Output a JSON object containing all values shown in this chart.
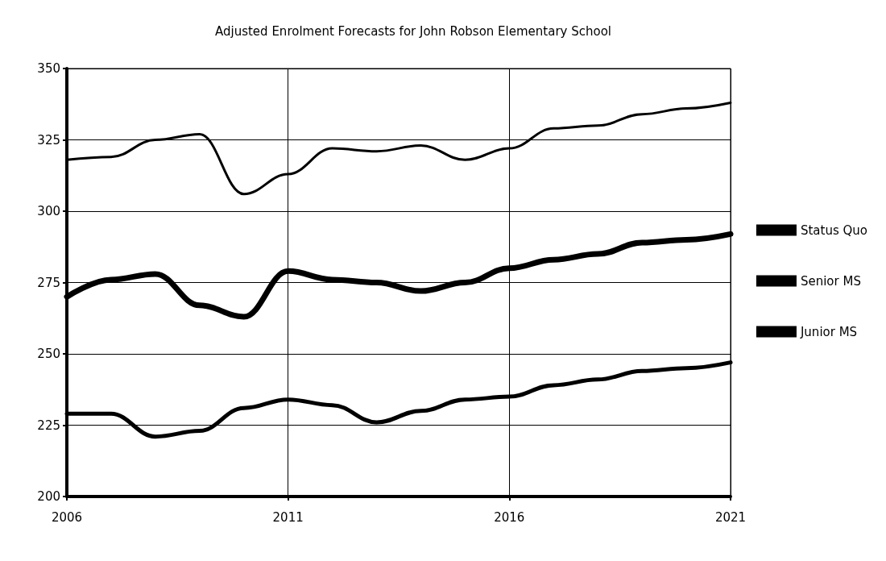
{
  "chart_data": {
    "type": "line",
    "title": "Adjusted Enrolment Forecasts for John Robson Elementary School",
    "x": [
      2006,
      2007,
      2008,
      2009,
      2010,
      2011,
      2012,
      2013,
      2014,
      2015,
      2016,
      2017,
      2018,
      2019,
      2020,
      2021
    ],
    "series": [
      {
        "name": "Status Quo",
        "color": "#000000",
        "values": [
          318,
          319,
          325,
          327,
          306,
          313,
          322,
          321,
          323,
          318,
          322,
          329,
          330,
          334,
          336,
          338
        ]
      },
      {
        "name": "Senior MS",
        "color": "#000000",
        "values": [
          270,
          276,
          278,
          267,
          263,
          279,
          276,
          275,
          272,
          275,
          280,
          283,
          285,
          289,
          290,
          292
        ]
      },
      {
        "name": "Junior MS",
        "color": "#000000",
        "values": [
          229,
          229,
          221,
          223,
          231,
          234,
          232,
          226,
          230,
          234,
          235,
          239,
          241,
          244,
          245,
          247
        ]
      }
    ],
    "xlim": [
      2006,
      2021
    ],
    "xticks": [
      2006,
      2011,
      2016,
      2021
    ],
    "ylim": [
      200,
      350
    ],
    "yticks": [
      200,
      225,
      250,
      275,
      300,
      325,
      350
    ],
    "grid": true,
    "legend": "right",
    "marker": "none",
    "line_style": "solid"
  }
}
